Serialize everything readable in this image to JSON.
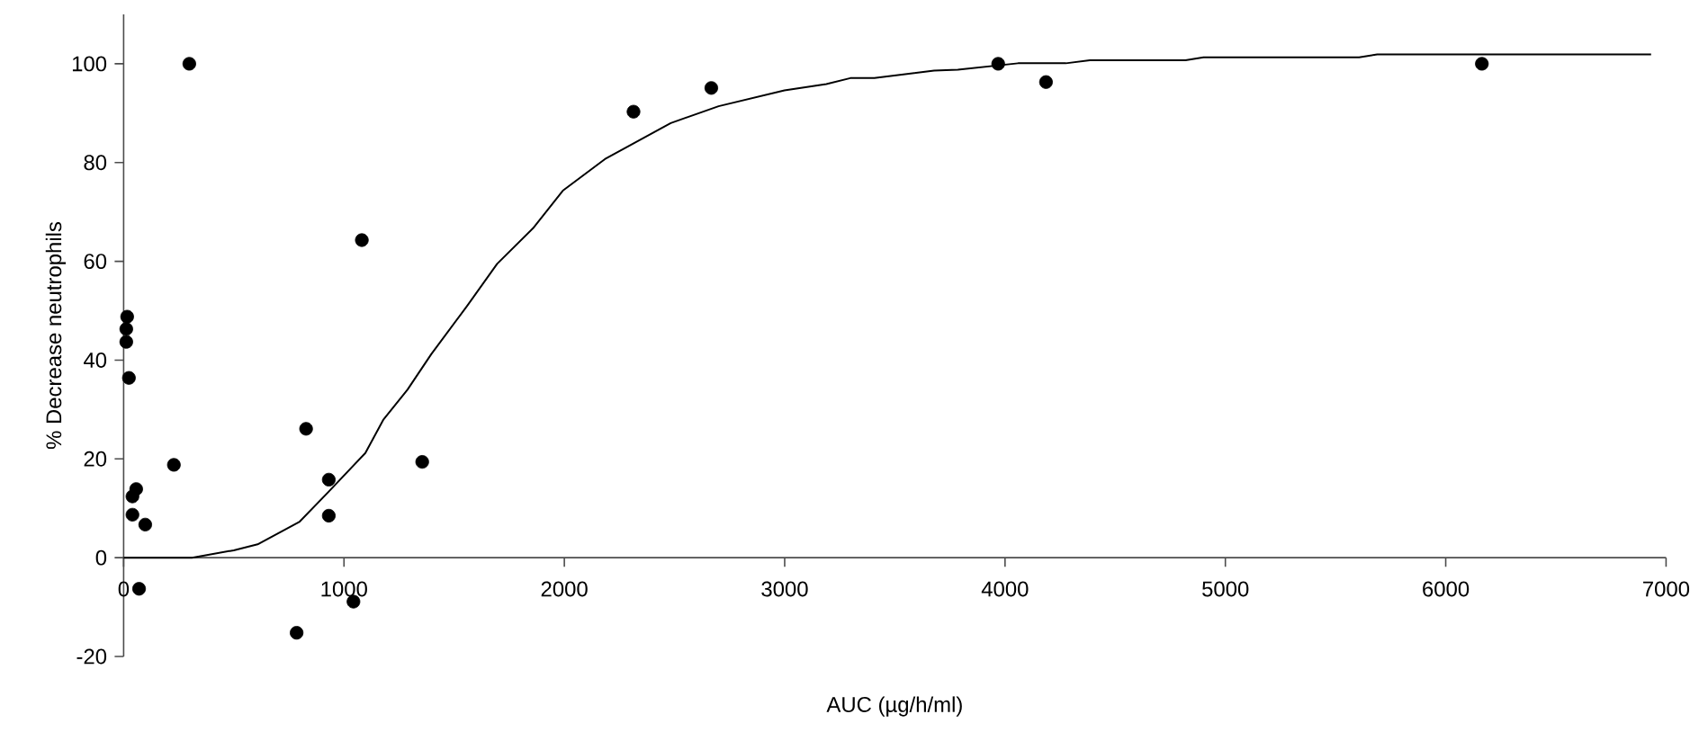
{
  "chart_data": {
    "type": "scatter",
    "xlabel": "AUC (µg/h/ml)",
    "ylabel": "% Decrease neutrophils",
    "xlim": [
      0,
      7000
    ],
    "ylim": [
      -20,
      110
    ],
    "xticks": [
      0,
      1000,
      2000,
      3000,
      4000,
      5000,
      6000,
      7000
    ],
    "yticks": [
      -20,
      0,
      20,
      40,
      60,
      80,
      100
    ],
    "series": [
      {
        "marker": "circle",
        "color": "#000000",
        "x": [
          298,
          16,
          12,
          12,
          24,
          228,
          57,
          40,
          40,
          98,
          70,
          828,
          1081,
          931,
          931,
          785,
          1043,
          1355,
          2314,
          2667,
          3969,
          4186,
          6164
        ],
        "values": [
          100,
          48.8,
          46.3,
          43.7,
          36.4,
          18.8,
          13.9,
          12.4,
          8.7,
          6.7,
          -6.3,
          26.1,
          64.3,
          15.8,
          8.5,
          -15.2,
          -8.9,
          19.4,
          90.3,
          95.1,
          100,
          96.3,
          100
        ]
      },
      {
        "type": "line",
        "marker": "none",
        "line_style": "solid",
        "color": "#000000",
        "x": [
          0,
          310,
          500,
          608,
          799,
          929,
          1097,
          1178,
          1288,
          1396,
          1559,
          1695,
          1858,
          1993,
          2184,
          2483,
          2700,
          2999,
          3189,
          3298,
          3407,
          3678,
          3786,
          4059,
          4276,
          4385,
          4602,
          4819,
          4901,
          5145,
          5607,
          5689,
          6932
        ],
        "values": [
          0,
          0,
          1.5,
          2.7,
          7.3,
          13.3,
          21.2,
          27.9,
          34,
          41.2,
          51,
          59.5,
          66.7,
          74.3,
          80.7,
          88,
          91.4,
          94.6,
          95.9,
          97.1,
          97.1,
          98.6,
          98.8,
          100.1,
          100.1,
          100.7,
          100.7,
          100.7,
          101.3,
          101.3,
          101.3,
          101.9,
          101.9
        ]
      }
    ]
  }
}
